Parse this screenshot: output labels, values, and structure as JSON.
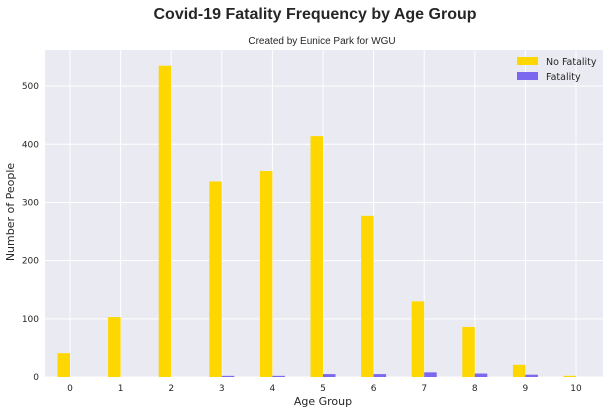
{
  "chart_data": {
    "type": "bar",
    "title": "Covid-19 Fatality Frequency by Age Group",
    "subtitle": "Created by Eunice Park for WGU",
    "xlabel": "Age Group",
    "ylabel": "Number of People",
    "categories": [
      "0",
      "1",
      "2",
      "3",
      "4",
      "5",
      "6",
      "7",
      "8",
      "9",
      "10"
    ],
    "series": [
      {
        "name": "No Fatality",
        "color": "#FFD700",
        "values": [
          41,
          103,
          535,
          336,
          354,
          414,
          277,
          130,
          86,
          21,
          2
        ]
      },
      {
        "name": "Fatality",
        "color": "#7B68EE",
        "values": [
          0,
          0,
          0,
          2,
          2,
          5,
          5,
          8,
          6,
          4,
          0
        ]
      }
    ],
    "yticks": [
      0,
      100,
      200,
      300,
      400,
      500
    ],
    "ylim": [
      0,
      562
    ],
    "grid": true,
    "legend": "top-right",
    "background": "#EAEAF2"
  }
}
